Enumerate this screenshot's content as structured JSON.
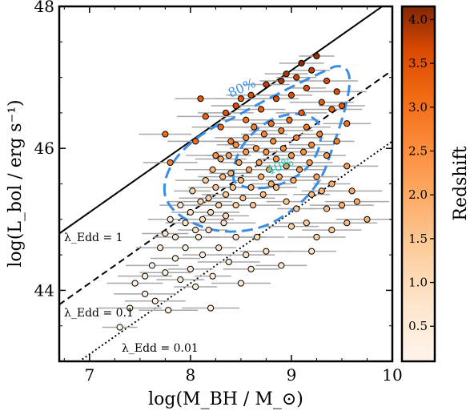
{
  "chart_data": {
    "type": "scatter",
    "title": "",
    "xlabel": "log(M_BH / M_⊙)",
    "ylabel": "log(L_bol / erg s⁻¹)",
    "xlim": [
      6.7,
      10.0
    ],
    "ylim": [
      43.0,
      48.0
    ],
    "x_ticks": [
      "7",
      "8",
      "9",
      "10"
    ],
    "y_ticks": [
      "44",
      "46",
      "48"
    ],
    "grid": false,
    "colorbar": {
      "label": "Redshift",
      "range": [
        0.1,
        4.15
      ],
      "ticks": [
        "0.5",
        "1.0",
        "1.5",
        "2.0",
        "2.5",
        "3.0",
        "3.5",
        "4.0"
      ],
      "colormap": "Oranges",
      "low_color": "#fff5eb",
      "high_color": "#7f2704"
    },
    "eddington_lines": [
      {
        "label": "λ_Edd = 1",
        "style": "solid",
        "log_lambda": 0
      },
      {
        "label": "λ_Edd = 0.1",
        "style": "dashed",
        "log_lambda": -1
      },
      {
        "label": "λ_Edd = 0.01",
        "style": "dotted",
        "log_lambda": -2
      }
    ],
    "contours": [
      {
        "label": "80%",
        "color": "#3a8ee6"
      },
      {
        "label": "40%",
        "color": "#3a8ee6",
        "label_color": "#22d3c5"
      }
    ],
    "points": [
      [
        7.3,
        43.48,
        0.12
      ],
      [
        7.4,
        43.75,
        0.2
      ],
      [
        7.55,
        43.95,
        0.25
      ],
      [
        7.65,
        43.85,
        0.18
      ],
      [
        7.78,
        43.72,
        0.3
      ],
      [
        8.2,
        43.75,
        0.35
      ],
      [
        7.45,
        44.1,
        0.2
      ],
      [
        7.55,
        44.2,
        0.3
      ],
      [
        7.62,
        44.35,
        0.25
      ],
      [
        7.75,
        44.25,
        0.4
      ],
      [
        7.85,
        44.45,
        0.3
      ],
      [
        7.9,
        44.15,
        0.5
      ],
      [
        7.95,
        44.6,
        0.35
      ],
      [
        8.0,
        44.3,
        0.45
      ],
      [
        8.05,
        44.05,
        0.3
      ],
      [
        8.08,
        44.75,
        0.6
      ],
      [
        8.12,
        44.5,
        0.5
      ],
      [
        8.18,
        44.85,
        0.8
      ],
      [
        8.22,
        44.2,
        0.45
      ],
      [
        8.28,
        44.6,
        0.7
      ],
      [
        8.33,
        44.95,
        0.9
      ],
      [
        8.38,
        44.4,
        0.55
      ],
      [
        8.45,
        44.75,
        0.75
      ],
      [
        8.5,
        44.1,
        0.6
      ],
      [
        8.55,
        44.5,
        0.8
      ],
      [
        8.6,
        44.3,
        0.6
      ],
      [
        8.66,
        44.75,
        1.0
      ],
      [
        8.75,
        44.55,
        0.9
      ],
      [
        8.9,
        44.35,
        0.7
      ],
      [
        9.2,
        44.55,
        0.8
      ],
      [
        7.7,
        44.6,
        0.6
      ],
      [
        7.75,
        44.8,
        0.5
      ],
      [
        7.8,
        45.0,
        0.5
      ],
      [
        7.85,
        44.75,
        0.6
      ],
      [
        7.9,
        45.2,
        0.7
      ],
      [
        7.95,
        44.95,
        0.8
      ],
      [
        8.0,
        45.1,
        0.9
      ],
      [
        8.02,
        45.4,
        1.2
      ],
      [
        8.05,
        44.85,
        0.8
      ],
      [
        8.1,
        45.25,
        1.1
      ],
      [
        8.12,
        45.0,
        0.9
      ],
      [
        8.15,
        45.55,
        1.4
      ],
      [
        8.18,
        45.3,
        1.3
      ],
      [
        8.2,
        45.1,
        1.0
      ],
      [
        8.22,
        45.7,
        1.8
      ],
      [
        8.25,
        45.45,
        1.5
      ],
      [
        8.28,
        45.2,
        1.2
      ],
      [
        8.3,
        45.85,
        2.0
      ],
      [
        8.32,
        45.6,
        1.7
      ],
      [
        8.35,
        45.35,
        1.4
      ],
      [
        8.35,
        45.05,
        1.1
      ],
      [
        8.38,
        45.9,
        2.2
      ],
      [
        8.4,
        45.65,
        1.8
      ],
      [
        8.42,
        45.45,
        1.5
      ],
      [
        8.45,
        45.2,
        1.3
      ],
      [
        8.45,
        46.05,
        2.4
      ],
      [
        8.48,
        45.8,
        2.0
      ],
      [
        8.5,
        45.55,
        1.8
      ],
      [
        8.52,
        45.3,
        1.5
      ],
      [
        8.55,
        46.15,
        2.6
      ],
      [
        8.55,
        45.95,
        2.3
      ],
      [
        8.58,
        45.7,
        2.0
      ],
      [
        8.6,
        45.45,
        1.8
      ],
      [
        8.62,
        45.2,
        1.5
      ],
      [
        8.63,
        46.3,
        2.8
      ],
      [
        8.65,
        46.0,
        2.5
      ],
      [
        8.68,
        45.8,
        2.2
      ],
      [
        8.7,
        45.6,
        2.0
      ],
      [
        8.72,
        45.35,
        1.7
      ],
      [
        8.73,
        46.2,
        2.7
      ],
      [
        8.75,
        45.95,
        2.4
      ],
      [
        8.78,
        45.7,
        2.1
      ],
      [
        8.8,
        46.35,
        3.0
      ],
      [
        8.8,
        45.5,
        1.9
      ],
      [
        8.82,
        46.1,
        2.6
      ],
      [
        8.85,
        45.85,
        2.3
      ],
      [
        8.88,
        45.6,
        2.0
      ],
      [
        8.9,
        46.25,
        2.8
      ],
      [
        8.92,
        46.0,
        2.5
      ],
      [
        8.95,
        45.75,
        2.2
      ],
      [
        8.98,
        46.4,
        3.1
      ],
      [
        9.0,
        45.9,
        2.4
      ],
      [
        9.02,
        45.55,
        2.0
      ],
      [
        9.05,
        46.15,
        2.7
      ],
      [
        9.08,
        45.7,
        2.2
      ],
      [
        9.1,
        46.5,
        3.3
      ],
      [
        9.12,
        45.95,
        2.5
      ],
      [
        9.15,
        46.3,
        2.9
      ],
      [
        9.18,
        45.8,
        2.3
      ],
      [
        9.2,
        46.05,
        2.6
      ],
      [
        9.25,
        45.6,
        2.1
      ],
      [
        9.28,
        46.2,
        2.8
      ],
      [
        9.3,
        45.4,
        1.8
      ],
      [
        9.35,
        45.9,
        2.4
      ],
      [
        9.4,
        45.5,
        2.0
      ],
      [
        9.45,
        46.1,
        2.6
      ],
      [
        9.5,
        45.2,
        1.9
      ],
      [
        9.55,
        45.75,
        2.3
      ],
      [
        9.6,
        45.4,
        2.1
      ],
      [
        8.25,
        45.9,
        2.4
      ],
      [
        8.3,
        46.3,
        3.1
      ],
      [
        8.35,
        46.5,
        3.5
      ],
      [
        8.4,
        46.1,
        2.7
      ],
      [
        8.5,
        46.7,
        3.4
      ],
      [
        8.55,
        46.4,
        3.0
      ],
      [
        8.6,
        46.75,
        3.6
      ],
      [
        8.7,
        46.55,
        3.3
      ],
      [
        8.75,
        46.9,
        3.8
      ],
      [
        8.85,
        46.7,
        3.5
      ],
      [
        8.9,
        46.95,
        3.9
      ],
      [
        9.0,
        46.75,
        3.6
      ],
      [
        9.05,
        47.0,
        3.7
      ],
      [
        9.15,
        46.85,
        3.5
      ],
      [
        9.2,
        47.1,
        3.8
      ],
      [
        9.25,
        47.3,
        4.0
      ],
      [
        9.3,
        46.65,
        3.3
      ],
      [
        9.35,
        46.95,
        3.6
      ],
      [
        9.4,
        46.55,
        3.2
      ],
      [
        9.45,
        46.8,
        3.5
      ],
      [
        8.15,
        46.45,
        3.2
      ],
      [
        8.05,
        46.1,
        3.0
      ],
      [
        7.8,
        45.8,
        2.8
      ],
      [
        7.75,
        46.2,
        3.1
      ],
      [
        8.1,
        46.7,
        3.4
      ],
      [
        8.45,
        46.6,
        3.6
      ],
      [
        9.55,
        46.35,
        3.0
      ],
      [
        9.5,
        46.6,
        3.4
      ],
      [
        9.1,
        47.2,
        4.1
      ],
      [
        8.95,
        47.05,
        3.9
      ],
      [
        8.85,
        45.45,
        1.6
      ],
      [
        8.95,
        45.25,
        1.5
      ],
      [
        9.05,
        45.15,
        1.4
      ],
      [
        9.2,
        45.35,
        1.7
      ],
      [
        9.35,
        45.15,
        1.6
      ],
      [
        9.65,
        45.25,
        2.0
      ],
      [
        9.75,
        45.0,
        1.9
      ],
      [
        9.55,
        44.95,
        1.7
      ],
      [
        9.4,
        44.85,
        1.4
      ],
      [
        9.25,
        44.75,
        1.3
      ],
      [
        9.15,
        44.95,
        1.4
      ],
      [
        9.0,
        44.9,
        1.3
      ]
    ]
  }
}
